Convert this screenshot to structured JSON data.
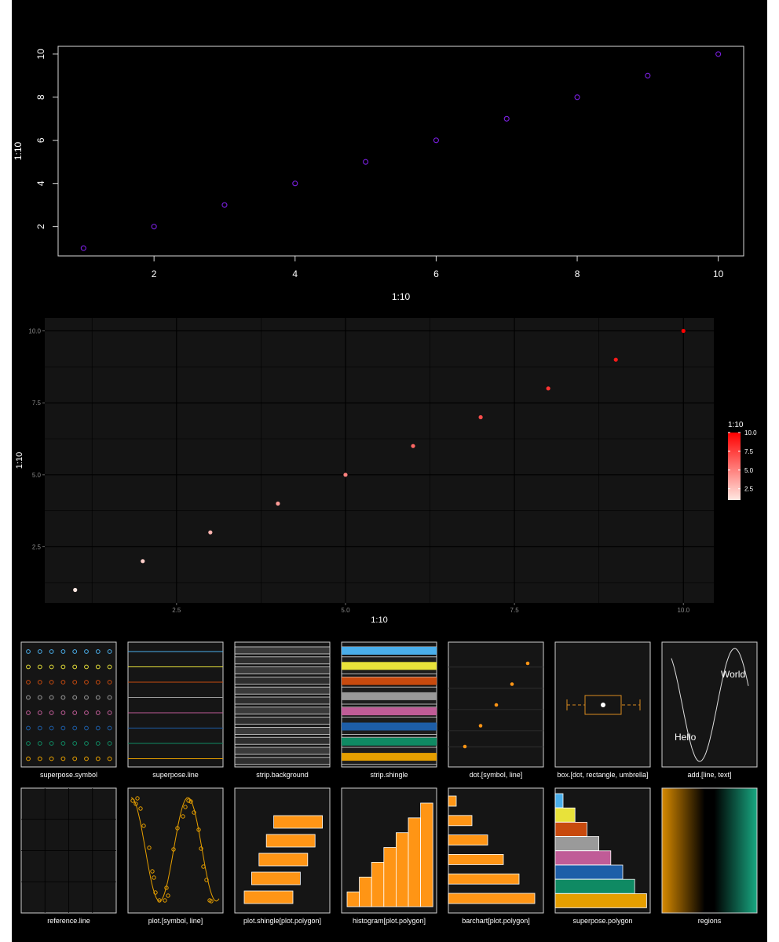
{
  "chart_data": [
    {
      "type": "scatter",
      "panel": "base graphics plot",
      "x": [
        1,
        2,
        3,
        4,
        5,
        6,
        7,
        8,
        9,
        10
      ],
      "y": [
        1,
        2,
        3,
        4,
        5,
        6,
        7,
        8,
        9,
        10
      ],
      "xlabel": "1:10",
      "ylabel": "1:10",
      "x_ticks": [
        "2",
        "4",
        "6",
        "8",
        "10"
      ],
      "y_ticks": [
        "2",
        "4",
        "6",
        "8",
        "10"
      ],
      "xlim": [
        0.64,
        10.36
      ],
      "ylim": [
        0.64,
        10.36
      ],
      "marker": "open circle",
      "point_color": "#7a1fe0",
      "background": "#000000",
      "foreground": "#ffffff",
      "grid": false
    },
    {
      "type": "scatter",
      "panel": "ggplot2 dark theme",
      "x": [
        1,
        2,
        3,
        4,
        5,
        6,
        7,
        8,
        9,
        10
      ],
      "y": [
        1,
        2,
        3,
        4,
        5,
        6,
        7,
        8,
        9,
        10
      ],
      "xlabel": "1:10",
      "ylabel": "1:10",
      "x_ticks": [
        "2.5",
        "5.0",
        "7.5",
        "10.0"
      ],
      "y_ticks": [
        "2.5",
        "5.0",
        "7.5",
        "10.0"
      ],
      "xlim": [
        0.55,
        10.45
      ],
      "ylim": [
        0.55,
        10.45
      ],
      "grid": true,
      "panel_background": "#141414",
      "legend": {
        "title": "1:10",
        "type": "colorbar",
        "labels": [
          "10.0",
          "7.5",
          "5.0",
          "2.5"
        ],
        "range": [
          1,
          10
        ],
        "low_color": "#ffe8e2",
        "high_color": "#ff0000",
        "position": "right"
      }
    },
    {
      "type": "panel-grid",
      "panel": "lattice theme preview",
      "panels": [
        {
          "caption": "superpose.symbol"
        },
        {
          "caption": "superpose.line"
        },
        {
          "caption": "strip.background"
        },
        {
          "caption": "strip.shingle"
        },
        {
          "caption": "dot.[symbol, line]",
          "x": [
            0,
            1,
            2,
            3,
            4
          ],
          "values": [
            1,
            2,
            3,
            4,
            5
          ]
        },
        {
          "caption": "box.[dot, rectangle, umbrella]"
        },
        {
          "caption": "add.[line, text]",
          "texts": [
            "World",
            "Hello"
          ]
        },
        {
          "caption": "reference.line"
        },
        {
          "caption": "plot.[symbol, line]"
        },
        {
          "caption": "plot.shingle[plot.polygon]"
        },
        {
          "caption": "histogram[plot.polygon]",
          "values": [
            1,
            2,
            3,
            4,
            5,
            6,
            7
          ]
        },
        {
          "caption": "barchart[plot.polygon]",
          "values": [
            1,
            3,
            5,
            7,
            9,
            11
          ]
        },
        {
          "caption": "superpose.polygon"
        },
        {
          "caption": "regions"
        }
      ],
      "superpose_colors": [
        "#e69f00",
        "#0f8a63",
        "#1d5ea8",
        "#c05c97",
        "#9a9a9a",
        "#c84a0e",
        "#e8e23a",
        "#4aaeea"
      ],
      "accent_color": "#ff9515"
    }
  ]
}
